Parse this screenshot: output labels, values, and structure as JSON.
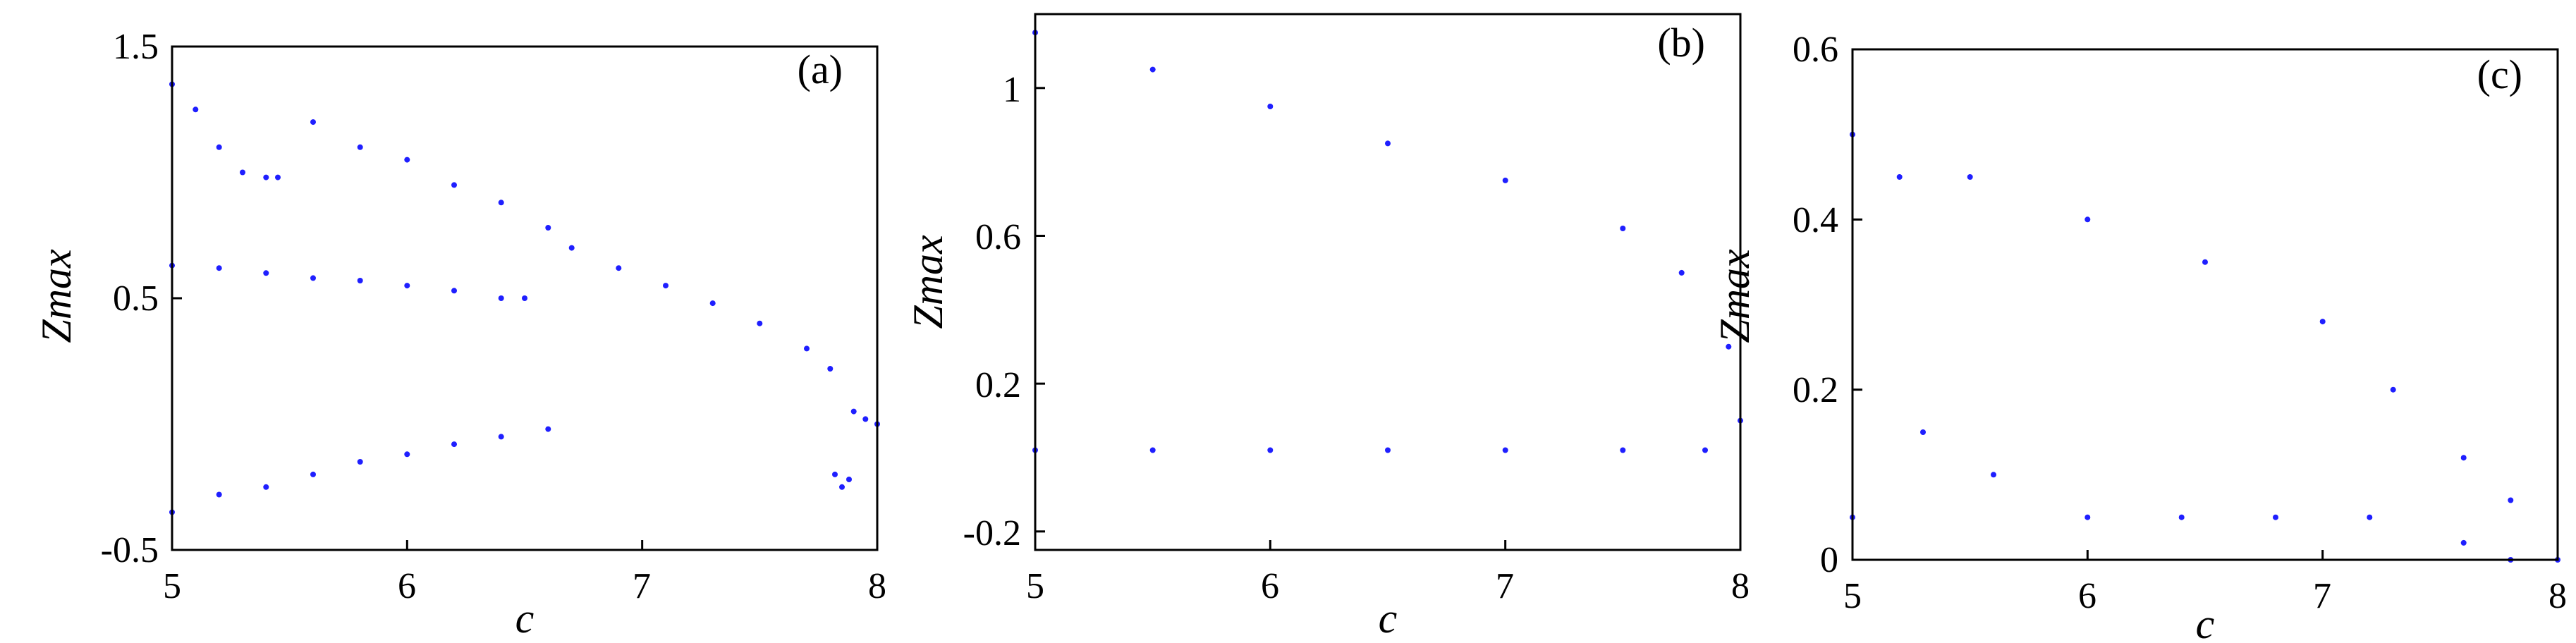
{
  "chart_data": [
    {
      "type": "scatter",
      "panel_label": "(a)",
      "xlabel": "c",
      "ylabel": "Zmax",
      "xlim": [
        5,
        8
      ],
      "ylim": [
        -0.5,
        1.5
      ],
      "xticks": [
        "5",
        "6",
        "7",
        "8"
      ],
      "yticks": [
        "-0.5",
        "0.5",
        "1.5"
      ],
      "xtick_values": [
        5,
        6,
        7,
        8
      ],
      "ytick_values": [
        -0.5,
        0.5,
        1.5
      ],
      "grid": false,
      "marker_color": "#1f1fff",
      "series": [
        {
          "x": [
            5.0,
            5.1,
            5.2,
            5.3,
            5.4,
            5.45,
            5.6,
            5.8,
            6.0,
            6.2,
            6.4,
            6.6
          ],
          "y": [
            1.35,
            1.25,
            1.1,
            1.0,
            0.98,
            0.98,
            1.2,
            1.1,
            1.05,
            0.95,
            0.88,
            0.78
          ]
        },
        {
          "x": [
            5.0,
            5.2,
            5.4,
            5.6,
            5.8,
            6.0,
            6.2,
            6.4,
            6.5
          ],
          "y": [
            0.63,
            0.62,
            0.6,
            0.58,
            0.57,
            0.55,
            0.53,
            0.5,
            0.5
          ]
        },
        {
          "x": [
            6.7,
            6.9,
            7.1,
            7.3,
            7.5,
            7.7,
            7.8
          ],
          "y": [
            0.7,
            0.62,
            0.55,
            0.48,
            0.4,
            0.3,
            0.22
          ]
        },
        {
          "x": [
            7.82,
            7.85,
            7.88,
            7.9,
            7.95,
            8.0
          ],
          "y": [
            -0.2,
            -0.25,
            -0.22,
            0.05,
            0.02,
            0.0
          ]
        },
        {
          "x": [
            5.0,
            5.2,
            5.4,
            5.6,
            5.8,
            6.0,
            6.2,
            6.4,
            6.6
          ],
          "y": [
            -0.35,
            -0.28,
            -0.25,
            -0.2,
            -0.15,
            -0.12,
            -0.08,
            -0.05,
            -0.02
          ]
        }
      ]
    },
    {
      "type": "scatter",
      "panel_label": "(b)",
      "xlabel": "c",
      "ylabel": "Zmax",
      "xlim": [
        5,
        8
      ],
      "ylim": [
        -0.25,
        1.2
      ],
      "xticks": [
        "5",
        "6",
        "7",
        "8"
      ],
      "yticks": [
        "-0.2",
        "0.2",
        "0.6",
        "1"
      ],
      "xtick_values": [
        5,
        6,
        7,
        8
      ],
      "ytick_values": [
        -0.2,
        0.2,
        0.6,
        1.0
      ],
      "grid": false,
      "marker_color": "#1f1fff",
      "series": [
        {
          "x": [
            5.0,
            5.5,
            6.0,
            6.5,
            7.0,
            7.5,
            7.75
          ],
          "y": [
            1.15,
            1.05,
            0.95,
            0.85,
            0.75,
            0.62,
            0.5
          ]
        },
        {
          "x": [
            5.0,
            5.5,
            6.0,
            6.5,
            7.0,
            7.5,
            7.85
          ],
          "y": [
            0.02,
            0.02,
            0.02,
            0.02,
            0.02,
            0.02,
            0.02
          ]
        },
        {
          "x": [
            7.95,
            8.0
          ],
          "y": [
            0.3,
            0.1
          ]
        }
      ]
    },
    {
      "type": "scatter",
      "panel_label": "(c)",
      "xlabel": "c",
      "ylabel": "Zmax",
      "xlim": [
        5,
        8
      ],
      "ylim": [
        0,
        0.6
      ],
      "xticks": [
        "5",
        "6",
        "7",
        "8"
      ],
      "yticks": [
        "0",
        "0.2",
        "0.4",
        "0.6"
      ],
      "xtick_values": [
        5,
        6,
        7,
        8
      ],
      "ytick_values": [
        0,
        0.2,
        0.4,
        0.6
      ],
      "grid": false,
      "marker_color": "#1f1fff",
      "series": [
        {
          "x": [
            5.0,
            5.2,
            5.5,
            6.0,
            6.5,
            7.0,
            7.3,
            7.6,
            7.8,
            8.0
          ],
          "y": [
            0.5,
            0.45,
            0.45,
            0.4,
            0.35,
            0.28,
            0.2,
            0.12,
            0.07,
            0.0
          ]
        },
        {
          "x": [
            5.0,
            5.3,
            5.6,
            6.0,
            6.4,
            6.8,
            7.2,
            7.6,
            7.8
          ],
          "y": [
            0.05,
            0.15,
            0.1,
            0.05,
            0.05,
            0.05,
            0.05,
            0.02,
            0.0
          ]
        }
      ]
    }
  ]
}
